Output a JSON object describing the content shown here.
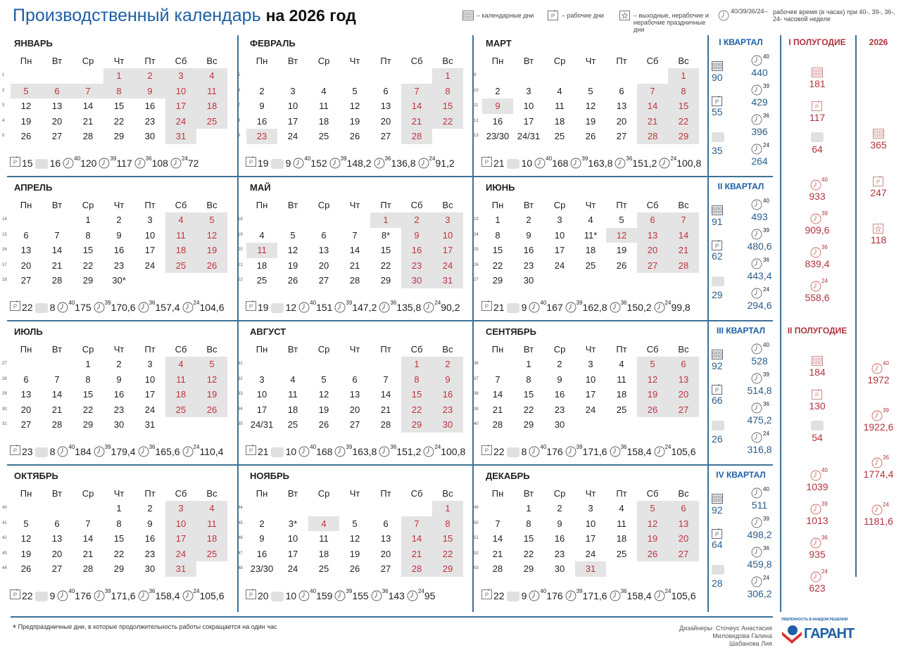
{
  "header": {
    "title_main": "Производственный календарь",
    "title_year": "на 2026 год",
    "legend": {
      "calendar_days": "– календарные дни",
      "work_days": "– рабочие дни",
      "off_days": "– выходные, нерабочие и нерабочие праздничные дни",
      "hours_weeks": "40/39/36/24–",
      "hours_text": "рабочее время (в часах) при 40-, 39-, 36-, 24- часовой неделе"
    }
  },
  "weekdays": [
    "Пн",
    "Вт",
    "Ср",
    "Чт",
    "Пт",
    "Сб",
    "Вс"
  ],
  "hour_norms": [
    "40",
    "39",
    "36",
    "24"
  ],
  "colors": {
    "brand_blue": "#1d5fa6",
    "holiday_red": "#c0323c",
    "off_bg": "#e4e4e4",
    "divider": "#3d7196"
  },
  "months": [
    {
      "name": "ЯНВАРЬ",
      "weeks": [
        "1",
        "2",
        "3",
        "4",
        "5"
      ],
      "rows": [
        [
          "",
          "",
          "",
          "1",
          "2",
          "3",
          "4"
        ],
        [
          "5",
          "6",
          "7",
          "8",
          "9",
          "10",
          "11"
        ],
        [
          "12",
          "13",
          "14",
          "15",
          "16",
          "17",
          "18"
        ],
        [
          "19",
          "20",
          "21",
          "22",
          "23",
          "24",
          "25"
        ],
        [
          "26",
          "27",
          "28",
          "29",
          "30",
          "31",
          ""
        ]
      ],
      "off": [
        "1",
        "2",
        "3",
        "4",
        "5",
        "6",
        "7",
        "8",
        "9",
        "10",
        "11",
        "17",
        "18",
        "24",
        "25",
        "31"
      ],
      "stats": [
        "15",
        "16",
        "120",
        "117",
        "108",
        "72"
      ]
    },
    {
      "name": "ФЕВРАЛЬ",
      "weeks": [
        "5",
        "6",
        "7",
        "8",
        "9"
      ],
      "rows": [
        [
          "",
          "",
          "",
          "",
          "",
          "",
          "1"
        ],
        [
          "2",
          "3",
          "4",
          "5",
          "6",
          "7",
          "8"
        ],
        [
          "9",
          "10",
          "11",
          "12",
          "13",
          "14",
          "15"
        ],
        [
          "16",
          "17",
          "18",
          "19",
          "20",
          "21",
          "22"
        ],
        [
          "23",
          "24",
          "25",
          "26",
          "27",
          "28",
          ""
        ]
      ],
      "off": [
        "1",
        "7",
        "8",
        "14",
        "15",
        "21",
        "22",
        "23",
        "28"
      ],
      "stats": [
        "19",
        "9",
        "152",
        "148,2",
        "136,8",
        "91,2"
      ]
    },
    {
      "name": "МАРТ",
      "weeks": [
        "9",
        "10",
        "11",
        "12",
        "13"
      ],
      "rows": [
        [
          "",
          "",
          "",
          "",
          "",
          "",
          "1"
        ],
        [
          "2",
          "3",
          "4",
          "5",
          "6",
          "7",
          "8"
        ],
        [
          "9",
          "10",
          "11",
          "12",
          "13",
          "14",
          "15"
        ],
        [
          "16",
          "17",
          "18",
          "19",
          "20",
          "21",
          "22"
        ],
        [
          "23/30",
          "24/31",
          "25",
          "26",
          "27",
          "28",
          "29"
        ]
      ],
      "off": [
        "1",
        "7",
        "8",
        "9",
        "14",
        "15",
        "21",
        "22",
        "28",
        "29"
      ],
      "stats": [
        "21",
        "10",
        "168",
        "163,8",
        "151,2",
        "100,8"
      ]
    },
    {
      "name": "АПРЕЛЬ",
      "weeks": [
        "14",
        "15",
        "16",
        "17",
        "18"
      ],
      "rows": [
        [
          "",
          "",
          "1",
          "2",
          "3",
          "4",
          "5"
        ],
        [
          "6",
          "7",
          "8",
          "9",
          "10",
          "11",
          "12"
        ],
        [
          "13",
          "14",
          "15",
          "16",
          "17",
          "18",
          "19"
        ],
        [
          "20",
          "21",
          "22",
          "23",
          "24",
          "25",
          "26"
        ],
        [
          "27",
          "28",
          "29",
          "30*",
          "",
          "",
          ""
        ]
      ],
      "off": [
        "4",
        "5",
        "11",
        "12",
        "18",
        "19",
        "25",
        "26"
      ],
      "stats": [
        "22",
        "8",
        "175",
        "170,6",
        "157,4",
        "104,6"
      ]
    },
    {
      "name": "МАЙ",
      "weeks": [
        "18",
        "19",
        "20",
        "21",
        "22"
      ],
      "rows": [
        [
          "",
          "",
          "",
          "",
          "1",
          "2",
          "3"
        ],
        [
          "4",
          "5",
          "6",
          "7",
          "8*",
          "9",
          "10"
        ],
        [
          "11",
          "12",
          "13",
          "14",
          "15",
          "16",
          "17"
        ],
        [
          "18",
          "19",
          "20",
          "21",
          "22",
          "23",
          "24"
        ],
        [
          "25",
          "26",
          "27",
          "28",
          "29",
          "30",
          "31"
        ]
      ],
      "off": [
        "1",
        "2",
        "3",
        "9",
        "10",
        "11",
        "16",
        "17",
        "23",
        "24",
        "30",
        "31"
      ],
      "stats": [
        "19",
        "12",
        "151",
        "147,2",
        "135,8",
        "90,2"
      ]
    },
    {
      "name": "ИЮНЬ",
      "weeks": [
        "23",
        "24",
        "25",
        "26",
        "27"
      ],
      "rows": [
        [
          "1",
          "2",
          "3",
          "4",
          "5",
          "6",
          "7"
        ],
        [
          "8",
          "9",
          "10",
          "11*",
          "12",
          "13",
          "14"
        ],
        [
          "15",
          "16",
          "17",
          "18",
          "19",
          "20",
          "21"
        ],
        [
          "22",
          "23",
          "24",
          "25",
          "26",
          "27",
          "28"
        ],
        [
          "29",
          "30",
          "",
          "",
          "",
          "",
          ""
        ]
      ],
      "off": [
        "6",
        "7",
        "12",
        "13",
        "14",
        "20",
        "21",
        "27",
        "28"
      ],
      "stats": [
        "21",
        "9",
        "167",
        "162,8",
        "150,2",
        "99,8"
      ]
    },
    {
      "name": "ИЮЛЬ",
      "weeks": [
        "27",
        "28",
        "29",
        "30",
        "31"
      ],
      "rows": [
        [
          "",
          "",
          "1",
          "2",
          "3",
          "4",
          "5"
        ],
        [
          "6",
          "7",
          "8",
          "9",
          "10",
          "11",
          "12"
        ],
        [
          "13",
          "14",
          "15",
          "16",
          "17",
          "18",
          "19"
        ],
        [
          "20",
          "21",
          "22",
          "23",
          "24",
          "25",
          "26"
        ],
        [
          "27",
          "28",
          "29",
          "30",
          "31",
          "",
          ""
        ]
      ],
      "off": [
        "4",
        "5",
        "11",
        "12",
        "18",
        "19",
        "25",
        "26"
      ],
      "stats": [
        "23",
        "8",
        "184",
        "179,4",
        "165,6",
        "110,4"
      ]
    },
    {
      "name": "АВГУСТ",
      "weeks": [
        "31",
        "32",
        "33",
        "34",
        "35"
      ],
      "rows": [
        [
          "",
          "",
          "",
          "",
          "",
          "1",
          "2"
        ],
        [
          "3",
          "4",
          "5",
          "6",
          "7",
          "8",
          "9"
        ],
        [
          "10",
          "11",
          "12",
          "13",
          "14",
          "15",
          "16"
        ],
        [
          "17",
          "18",
          "19",
          "20",
          "21",
          "22",
          "23"
        ],
        [
          "24/31",
          "25",
          "26",
          "27",
          "28",
          "29",
          "30"
        ]
      ],
      "off": [
        "1",
        "2",
        "8",
        "9",
        "15",
        "16",
        "22",
        "23",
        "29",
        "30"
      ],
      "stats": [
        "21",
        "10",
        "168",
        "163,8",
        "151,2",
        "100,8"
      ]
    },
    {
      "name": "СЕНТЯБРЬ",
      "weeks": [
        "36",
        "37",
        "38",
        "39",
        "40"
      ],
      "rows": [
        [
          "",
          "1",
          "2",
          "3",
          "4",
          "5",
          "6"
        ],
        [
          "7",
          "8",
          "9",
          "10",
          "11",
          "12",
          "13"
        ],
        [
          "14",
          "15",
          "16",
          "17",
          "18",
          "19",
          "20"
        ],
        [
          "21",
          "22",
          "23",
          "24",
          "25",
          "26",
          "27"
        ],
        [
          "28",
          "29",
          "30",
          "",
          "",
          "",
          ""
        ]
      ],
      "off": [
        "5",
        "6",
        "12",
        "13",
        "19",
        "20",
        "26",
        "27"
      ],
      "stats": [
        "22",
        "8",
        "176",
        "171,6",
        "158,4",
        "105,6"
      ]
    },
    {
      "name": "ОКТЯБРЬ",
      "weeks": [
        "40",
        "41",
        "42",
        "43",
        "44"
      ],
      "rows": [
        [
          "",
          "",
          "",
          "1",
          "2",
          "3",
          "4"
        ],
        [
          "5",
          "6",
          "7",
          "8",
          "9",
          "10",
          "11"
        ],
        [
          "12",
          "13",
          "14",
          "15",
          "16",
          "17",
          "18"
        ],
        [
          "19",
          "20",
          "21",
          "22",
          "23",
          "24",
          "25"
        ],
        [
          "26",
          "27",
          "28",
          "29",
          "30",
          "31",
          ""
        ]
      ],
      "off": [
        "3",
        "4",
        "10",
        "11",
        "17",
        "18",
        "24",
        "25",
        "31"
      ],
      "stats": [
        "22",
        "9",
        "176",
        "171,6",
        "158,4",
        "105,6"
      ]
    },
    {
      "name": "НОЯБРЬ",
      "weeks": [
        "44",
        "45",
        "46",
        "47",
        "48"
      ],
      "rows": [
        [
          "",
          "",
          "",
          "",
          "",
          "",
          "1"
        ],
        [
          "2",
          "3*",
          "4",
          "5",
          "6",
          "7",
          "8"
        ],
        [
          "9",
          "10",
          "11",
          "12",
          "13",
          "14",
          "15"
        ],
        [
          "16",
          "17",
          "18",
          "19",
          "20",
          "21",
          "22"
        ],
        [
          "23/30",
          "24",
          "25",
          "26",
          "27",
          "28",
          "29"
        ]
      ],
      "off": [
        "1",
        "4",
        "7",
        "8",
        "14",
        "15",
        "21",
        "22",
        "28",
        "29"
      ],
      "stats": [
        "20",
        "10",
        "159",
        "155",
        "143",
        "95"
      ]
    },
    {
      "name": "ДЕКАБРЬ",
      "weeks": [
        "49",
        "50",
        "51",
        "52",
        "53"
      ],
      "rows": [
        [
          "",
          "1",
          "2",
          "3",
          "4",
          "5",
          "6"
        ],
        [
          "7",
          "8",
          "9",
          "10",
          "11",
          "12",
          "13"
        ],
        [
          "14",
          "15",
          "16",
          "17",
          "18",
          "19",
          "20"
        ],
        [
          "21",
          "22",
          "23",
          "24",
          "25",
          "26",
          "27"
        ],
        [
          "28",
          "29",
          "30",
          "31",
          "",
          "",
          ""
        ]
      ],
      "off": [
        "5",
        "6",
        "12",
        "13",
        "19",
        "20",
        "26",
        "27",
        "31"
      ],
      "stats": [
        "22",
        "9",
        "176",
        "171,6",
        "158,4",
        "105,6"
      ]
    }
  ],
  "quarters": [
    {
      "title": "I КВАРТАЛ",
      "calendar": "90",
      "work": "55",
      "off": "35",
      "hours": [
        "440",
        "429",
        "396",
        "264"
      ]
    },
    {
      "title": "II КВАРТАЛ",
      "calendar": "91",
      "work": "62",
      "off": "29",
      "hours": [
        "493",
        "480,6",
        "443,4",
        "294,6"
      ]
    },
    {
      "title": "III КВАРТАЛ",
      "calendar": "92",
      "work": "66",
      "off": "26",
      "hours": [
        "528",
        "514,8",
        "475,2",
        "316,8"
      ]
    },
    {
      "title": "IV КВАРТАЛ",
      "calendar": "92",
      "work": "64",
      "off": "28",
      "hours": [
        "511",
        "498,2",
        "459,8",
        "306,2"
      ]
    }
  ],
  "halves": [
    {
      "title": "I ПОЛУГОДИЕ",
      "calendar": "181",
      "work": "117",
      "off": "64",
      "hours": [
        "933",
        "909,6",
        "839,4",
        "558,6"
      ]
    },
    {
      "title": "II ПОЛУГОДИЕ",
      "calendar": "184",
      "work": "130",
      "off": "54",
      "hours": [
        "1039",
        "1013",
        "935",
        "623"
      ]
    }
  ],
  "year": {
    "title": "2026",
    "calendar": "365",
    "work": "247",
    "off": "118",
    "hours": [
      "1972",
      "1922,6",
      "1774,4",
      "1181,6"
    ]
  },
  "footer": {
    "note_mark": "*",
    "note": "Предпраздничные дни, в которые продолжительность работы сокращается на один час",
    "designers": [
      "Дизайнеры: Сточеус Анастасия",
      "Миловидова Галина",
      "Шабанова Лия"
    ],
    "logo_tagline": "УВЕРЕННОСТЬ В КАЖДОМ РЕШЕНИИ",
    "logo_name": "ГАРАНТ"
  }
}
